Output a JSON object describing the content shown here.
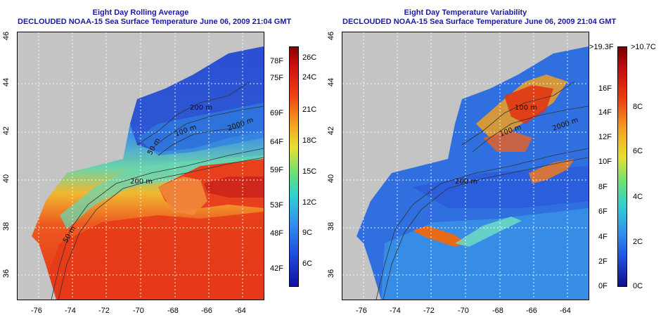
{
  "left_panel": {
    "title": "Eight Day Rolling Average",
    "subtitle": "DECLOUDED NOAA-15 Sea Surface Temperature June 06, 2009 21:04 GMT",
    "x_ticks": [
      "-76",
      "-74",
      "-72",
      "-70",
      "-68",
      "-66",
      "-64"
    ],
    "y_ticks": [
      "36",
      "38",
      "40",
      "42",
      "44",
      "46"
    ],
    "contour_labels": [
      "50 m",
      "200 m",
      "2000 m",
      "100 m",
      "200 m",
      "50 m"
    ],
    "colorbar_f": [
      "78F",
      "75F",
      "69F",
      "64F",
      "59F",
      "53F",
      "48F",
      "42F"
    ],
    "colorbar_c": [
      "26C",
      "24C",
      "21C",
      "18C",
      "15C",
      "12C",
      "9C",
      "6C"
    ]
  },
  "right_panel": {
    "title": "Eight Day Temperature Variability",
    "subtitle": "DECLOUDED NOAA-15 Sea Surface Temperature June 06, 2009 21:04 GMT",
    "x_ticks": [
      "-76",
      "-74",
      "-72",
      "-70",
      "-68",
      "-66",
      "-64"
    ],
    "y_ticks": [
      "36",
      "38",
      "40",
      "42",
      "44",
      "46"
    ],
    "contour_labels": [
      "200 m",
      "100 m",
      "2000 m",
      "100 m"
    ],
    "colorbar_f": [
      ">19.3F",
      "16F",
      "14F",
      "12F",
      "10F",
      "8F",
      "6F",
      "4F",
      "2F",
      "0F"
    ],
    "colorbar_c": [
      ">10.7C",
      "8C",
      "6C",
      "4C",
      "2C",
      "0C"
    ]
  },
  "colors": {
    "land": "#c4c4c4",
    "title": "#1a1aa8"
  }
}
